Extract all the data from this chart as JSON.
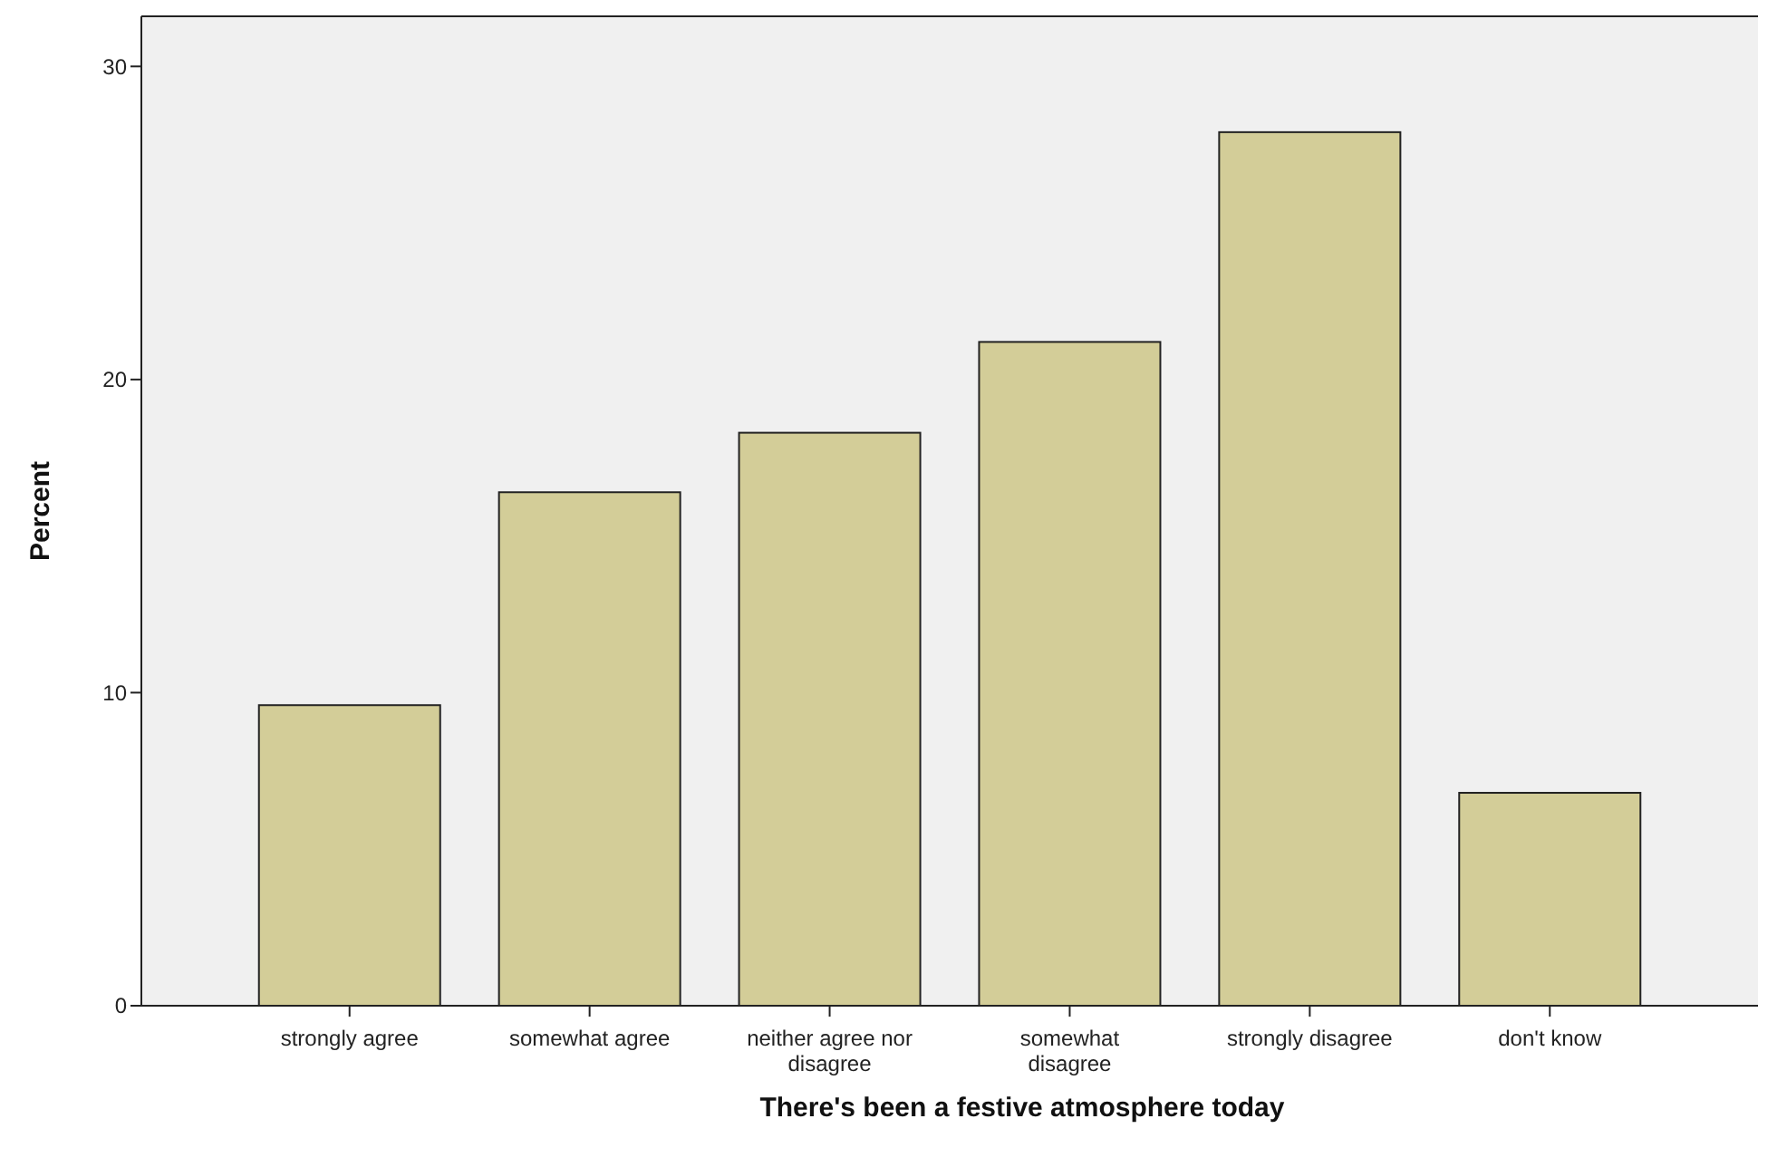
{
  "chart_data": {
    "type": "bar",
    "xlabel": "There's been a festive atmosphere today",
    "ylabel": "Percent",
    "categories": [
      "strongly agree",
      "somewhat agree",
      "neither agree nor disagree",
      "somewhat disagree",
      "strongly disagree",
      "don't know"
    ],
    "values": [
      9.6,
      16.4,
      18.3,
      21.2,
      27.9,
      6.8
    ],
    "color": "#d3cd98",
    "ylim": [
      0,
      31.6
    ],
    "yticks": [
      0,
      10,
      20,
      30
    ]
  }
}
